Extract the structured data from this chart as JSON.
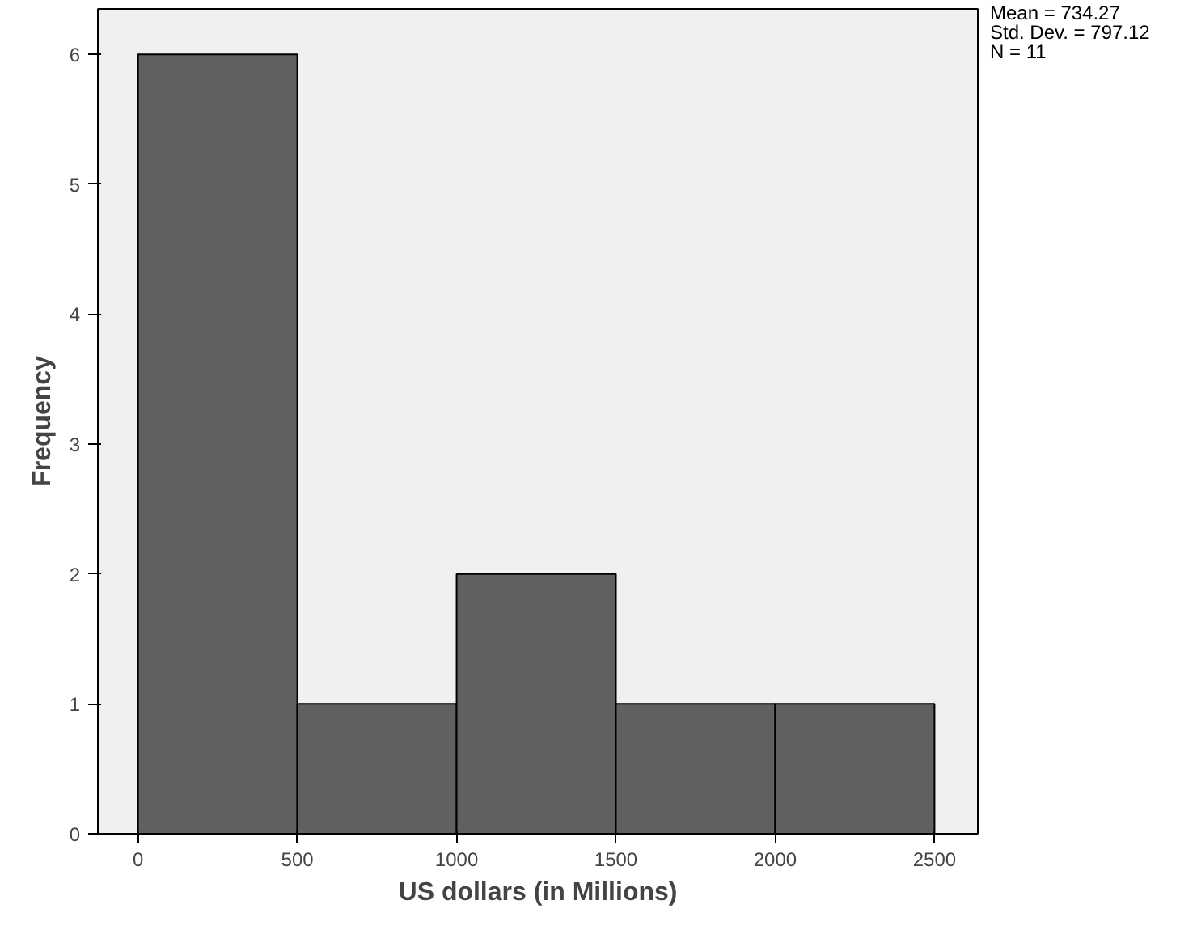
{
  "chart_data": {
    "type": "histogram",
    "xlabel": "US dollars (in Millions)",
    "ylabel": "Frequency",
    "bins": [
      0,
      500,
      1000,
      1500,
      2000,
      2500
    ],
    "values": [
      6,
      1,
      2,
      1,
      1
    ],
    "color": "#606060",
    "xlim": [
      -126,
      2636
    ],
    "ylim": [
      0,
      6.35
    ],
    "xticks": [
      0,
      500,
      1000,
      1500,
      2000,
      2500
    ],
    "yticks": [
      0,
      1,
      2,
      3,
      4,
      5,
      6
    ],
    "grid": false,
    "annotations": [
      "Mean = 734.27",
      "Std. Dev. = 797.12",
      "N = 11"
    ]
  }
}
